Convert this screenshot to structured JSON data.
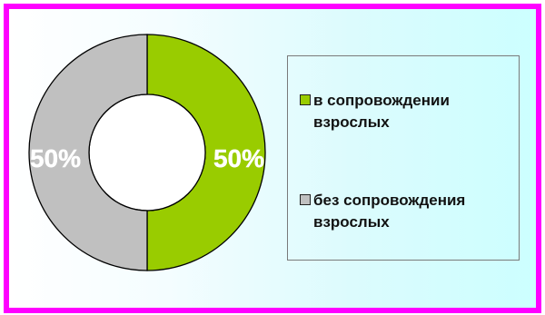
{
  "chart_data": {
    "type": "pie",
    "donut": true,
    "legend_position": "right",
    "colors": {
      "border": "#ff00ff",
      "slice_stroke": "#000000"
    },
    "slices": [
      {
        "label": "в сопровождении взрослых",
        "value": 50,
        "value_label": "50%",
        "color": "#99cc00"
      },
      {
        "label": "без сопровождения взрослых",
        "value": 50,
        "value_label": "50%",
        "color": "#c0c0c0"
      }
    ]
  }
}
